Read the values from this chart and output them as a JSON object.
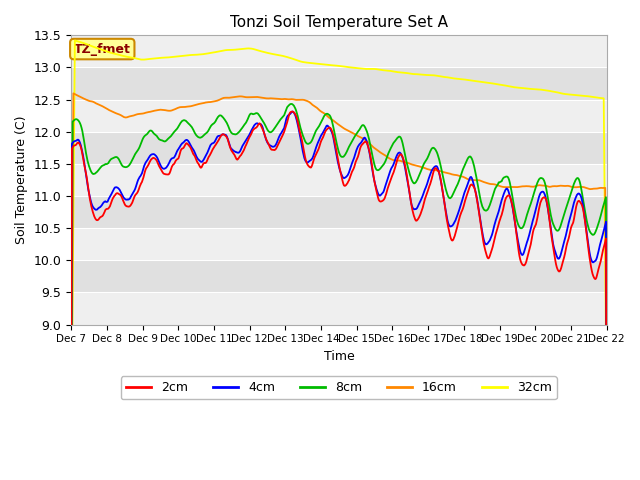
{
  "title": "Tonzi Soil Temperature Set A",
  "xlabel": "Time",
  "ylabel": "Soil Temperature (C)",
  "ylim": [
    9.0,
    13.5
  ],
  "yticks": [
    9.0,
    9.5,
    10.0,
    10.5,
    11.0,
    11.5,
    12.0,
    12.5,
    13.0,
    13.5
  ],
  "xtick_labels": [
    "Dec 7",
    "Dec 8",
    "Dec 9",
    "Dec 10",
    "Dec 11",
    "Dec 12",
    "Dec 13",
    "Dec 14",
    "Dec 15",
    "Dec 16",
    "Dec 17",
    "Dec 18",
    "Dec 19",
    "Dec 20",
    "Dec 21",
    "Dec 22"
  ],
  "colors": {
    "2cm": "#ff0000",
    "4cm": "#0000ff",
    "8cm": "#00bb00",
    "16cm": "#ff8800",
    "32cm": "#ffff00"
  },
  "bg_color": "#e0e0e0",
  "annotation_text": "TZ_fmet",
  "annotation_bg": "#ffff99",
  "annotation_border": "#cc8800"
}
